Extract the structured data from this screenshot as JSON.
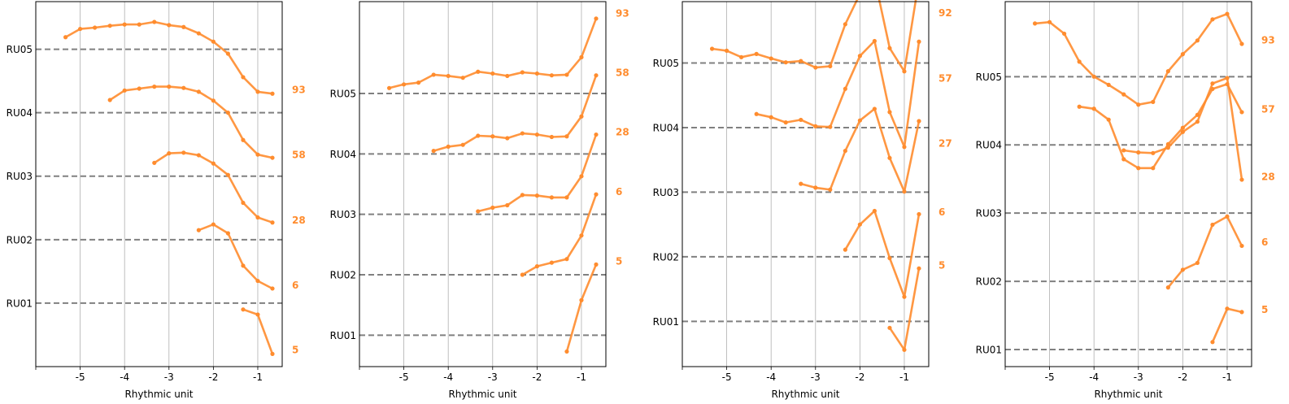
{
  "chart_data": [
    {
      "type": "line",
      "xlabel": "Rhythmic unit",
      "xlim": [
        -6,
        -0.45
      ],
      "ylim": [
        -1.0,
        4.75
      ],
      "grid": "vertical",
      "xticks": [
        -5,
        -4,
        -3,
        -2,
        -1
      ],
      "xtick_labels": [
        "-5",
        "-4",
        "-3",
        "-2",
        "-1"
      ],
      "yticks": [
        0,
        1,
        2,
        3,
        4
      ],
      "ytick_labels": [
        "RU01",
        "RU02",
        "RU03",
        "RU04",
        "RU05"
      ],
      "color": "#ff8c2e",
      "series": [
        {
          "name": "5",
          "label_y": -0.73,
          "x": [
            -1.33,
            -1.0,
            -0.67
          ],
          "y": [
            -0.1,
            -0.18,
            -0.8
          ]
        },
        {
          "name": "6",
          "label_y": 0.29,
          "x": [
            -2.33,
            -2.0,
            -1.67,
            -1.33,
            -1.0,
            -0.67
          ],
          "y": [
            1.15,
            1.24,
            1.1,
            0.59,
            0.35,
            0.23
          ]
        },
        {
          "name": "28",
          "label_y": 1.31,
          "x": [
            -3.33,
            -3.0,
            -2.67,
            -2.33,
            -2.0,
            -1.67,
            -1.33,
            -1.0,
            -0.67
          ],
          "y": [
            2.21,
            2.36,
            2.37,
            2.33,
            2.2,
            2.02,
            1.58,
            1.35,
            1.27
          ]
        },
        {
          "name": "58",
          "label_y": 2.34,
          "x": [
            -4.33,
            -4.0,
            -3.67,
            -3.33,
            -3.0,
            -2.67,
            -2.33,
            -2.0,
            -1.67,
            -1.33,
            -1.0,
            -0.67
          ],
          "y": [
            3.2,
            3.35,
            3.38,
            3.41,
            3.41,
            3.39,
            3.33,
            3.19,
            3.0,
            2.57,
            2.34,
            2.29
          ]
        },
        {
          "name": "93",
          "label_y": 3.37,
          "x": [
            -5.33,
            -5.0,
            -4.67,
            -4.33,
            -4.0,
            -3.67,
            -3.33,
            -3.0,
            -2.67,
            -2.33,
            -2.0,
            -1.67,
            -1.33,
            -1.0,
            -0.67
          ],
          "y": [
            4.19,
            4.32,
            4.34,
            4.37,
            4.39,
            4.39,
            4.43,
            4.38,
            4.35,
            4.25,
            4.12,
            3.93,
            3.56,
            3.33,
            3.3
          ]
        }
      ]
    },
    {
      "type": "line",
      "xlabel": "Rhythmic unit",
      "xlim": [
        -6,
        -0.45
      ],
      "ylim": [
        -0.52,
        5.52
      ],
      "grid": "vertical",
      "xticks": [
        -5,
        -4,
        -3,
        -2,
        -1
      ],
      "xtick_labels": [
        "-5",
        "-4",
        "-3",
        "-2",
        "-1"
      ],
      "yticks": [
        0,
        1,
        2,
        3,
        4
      ],
      "ytick_labels": [
        "RU01",
        "RU02",
        "RU03",
        "RU04",
        "RU05"
      ],
      "color": "#ff8c2e",
      "series": [
        {
          "name": "5",
          "label_y": 1.23,
          "x": [
            -1.33,
            -1.0,
            -0.67
          ],
          "y": [
            -0.27,
            0.58,
            1.17
          ]
        },
        {
          "name": "6",
          "label_y": 2.38,
          "x": [
            -2.33,
            -2.0,
            -1.67,
            -1.33,
            -1.0,
            -0.67
          ],
          "y": [
            1.0,
            1.14,
            1.2,
            1.26,
            1.65,
            2.33
          ]
        },
        {
          "name": "28",
          "label_y": 3.37,
          "x": [
            -3.33,
            -3.0,
            -2.67,
            -2.33,
            -2.0,
            -1.67,
            -1.33,
            -1.0,
            -0.67
          ],
          "y": [
            2.05,
            2.11,
            2.15,
            2.32,
            2.31,
            2.28,
            2.28,
            2.63,
            3.32
          ]
        },
        {
          "name": "58",
          "label_y": 4.35,
          "x": [
            -4.33,
            -4.0,
            -3.67,
            -3.33,
            -3.0,
            -2.67,
            -2.33,
            -2.0,
            -1.67,
            -1.33,
            -1.0,
            -0.67
          ],
          "y": [
            3.05,
            3.12,
            3.15,
            3.3,
            3.29,
            3.26,
            3.34,
            3.32,
            3.28,
            3.29,
            3.62,
            4.3
          ]
        },
        {
          "name": "93",
          "label_y": 5.33,
          "x": [
            -5.33,
            -5.0,
            -4.67,
            -4.33,
            -4.0,
            -3.67,
            -3.33,
            -3.0,
            -2.67,
            -2.33,
            -2.0,
            -1.67,
            -1.33,
            -1.0,
            -0.67
          ],
          "y": [
            4.09,
            4.15,
            4.18,
            4.31,
            4.29,
            4.26,
            4.36,
            4.33,
            4.29,
            4.35,
            4.33,
            4.3,
            4.31,
            4.6,
            5.24
          ]
        }
      ]
    },
    {
      "type": "line",
      "xlabel": "Rhythmic unit",
      "xlim": [
        -6,
        -0.45
      ],
      "ylim": [
        -0.7,
        4.95
      ],
      "grid": "vertical",
      "xticks": [
        -5,
        -4,
        -3,
        -2,
        -1
      ],
      "xtick_labels": [
        "-5",
        "-4",
        "-3",
        "-2",
        "-1"
      ],
      "yticks": [
        0,
        1,
        2,
        3,
        4
      ],
      "ytick_labels": [
        "RU01",
        "RU02",
        "RU03",
        "RU04",
        "RU05"
      ],
      "color": "#ff8c2e",
      "series": [
        {
          "name": "5",
          "label_y": 0.87,
          "x": [
            -1.33,
            -1.0,
            -0.67
          ],
          "y": [
            -0.1,
            -0.44,
            0.82
          ]
        },
        {
          "name": "6",
          "label_y": 1.7,
          "x": [
            -2.33,
            -2.0,
            -1.67,
            -1.33,
            -1.0,
            -0.67
          ],
          "y": [
            1.11,
            1.5,
            1.71,
            0.98,
            0.38,
            1.66
          ]
        },
        {
          "name": "27",
          "label_y": 2.76,
          "x": [
            -3.33,
            -3.0,
            -2.67,
            -2.33,
            -2.0,
            -1.67,
            -1.33,
            -1.0,
            -0.67
          ],
          "y": [
            2.13,
            2.07,
            2.04,
            2.64,
            3.11,
            3.29,
            2.53,
            2.01,
            3.1
          ]
        },
        {
          "name": "57",
          "label_y": 3.77,
          "x": [
            -4.33,
            -4.0,
            -3.67,
            -3.33,
            -3.0,
            -2.67,
            -2.33,
            -2.0,
            -1.67,
            -1.33,
            -1.0,
            -0.67
          ],
          "y": [
            3.21,
            3.16,
            3.08,
            3.12,
            3.02,
            3.01,
            3.6,
            4.11,
            4.34,
            3.24,
            2.7,
            4.33
          ]
        },
        {
          "name": "92",
          "label_y": 4.78,
          "x": [
            -5.33,
            -5.0,
            -4.67,
            -4.33,
            -4.0,
            -3.67,
            -3.33,
            -3.0,
            -2.67,
            -2.33,
            -2.0,
            -1.67,
            -1.33,
            -1.0,
            -0.67
          ],
          "y": [
            4.22,
            4.19,
            4.09,
            4.14,
            4.07,
            4.01,
            4.03,
            3.93,
            3.95,
            4.6,
            5.07,
            5.31,
            4.23,
            3.87,
            5.28
          ]
        }
      ]
    },
    {
      "type": "line",
      "xlabel": "Rhythmic unit",
      "xlim": [
        -6,
        -0.45
      ],
      "ylim": [
        -0.25,
        5.1
      ],
      "grid": "vertical",
      "xticks": [
        -5,
        -4,
        -3,
        -2,
        -1
      ],
      "xtick_labels": [
        "-5",
        "-4",
        "-3",
        "-2",
        "-1"
      ],
      "yticks": [
        0,
        1,
        2,
        3,
        4
      ],
      "ytick_labels": [
        "RU01",
        "RU02",
        "RU03",
        "RU04",
        "RU05"
      ],
      "color": "#ff8c2e",
      "series": [
        {
          "name": "5",
          "label_y": 0.59,
          "x": [
            -1.33,
            -1.0,
            -0.67
          ],
          "y": [
            0.11,
            0.6,
            0.55
          ]
        },
        {
          "name": "6",
          "label_y": 1.58,
          "x": [
            -2.33,
            -2.0,
            -1.67,
            -1.33,
            -1.0,
            -0.67
          ],
          "y": [
            0.91,
            1.17,
            1.27,
            1.83,
            1.95,
            1.52
          ]
        },
        {
          "name": "28",
          "label_y": 2.54,
          "x": [
            -3.33,
            -3.0,
            -2.67,
            -2.33,
            -2.0,
            -1.67,
            -1.33,
            -1.0,
            -0.67
          ],
          "y": [
            2.92,
            2.89,
            2.88,
            2.96,
            3.19,
            3.34,
            3.9,
            3.98,
            2.49
          ]
        },
        {
          "name": "57",
          "label_y": 3.53,
          "x": [
            -4.33,
            -4.0,
            -3.67,
            -3.33,
            -3.0,
            -2.67,
            -2.33,
            -2.0,
            -1.67,
            -1.33,
            -1.0,
            -0.67
          ],
          "y": [
            3.56,
            3.53,
            3.37,
            2.79,
            2.66,
            2.66,
            3.01,
            3.25,
            3.44,
            3.82,
            3.89,
            3.48
          ]
        },
        {
          "name": "93",
          "label_y": 4.54,
          "x": [
            -5.33,
            -5.0,
            -4.67,
            -4.33,
            -4.0,
            -3.67,
            -3.33,
            -3.0,
            -2.67,
            -2.33,
            -2.0,
            -1.67,
            -1.33,
            -1.0,
            -0.67
          ],
          "y": [
            4.78,
            4.8,
            4.63,
            4.22,
            4.0,
            3.88,
            3.74,
            3.59,
            3.63,
            4.08,
            4.33,
            4.53,
            4.84,
            4.92,
            4.48
          ]
        }
      ]
    }
  ]
}
